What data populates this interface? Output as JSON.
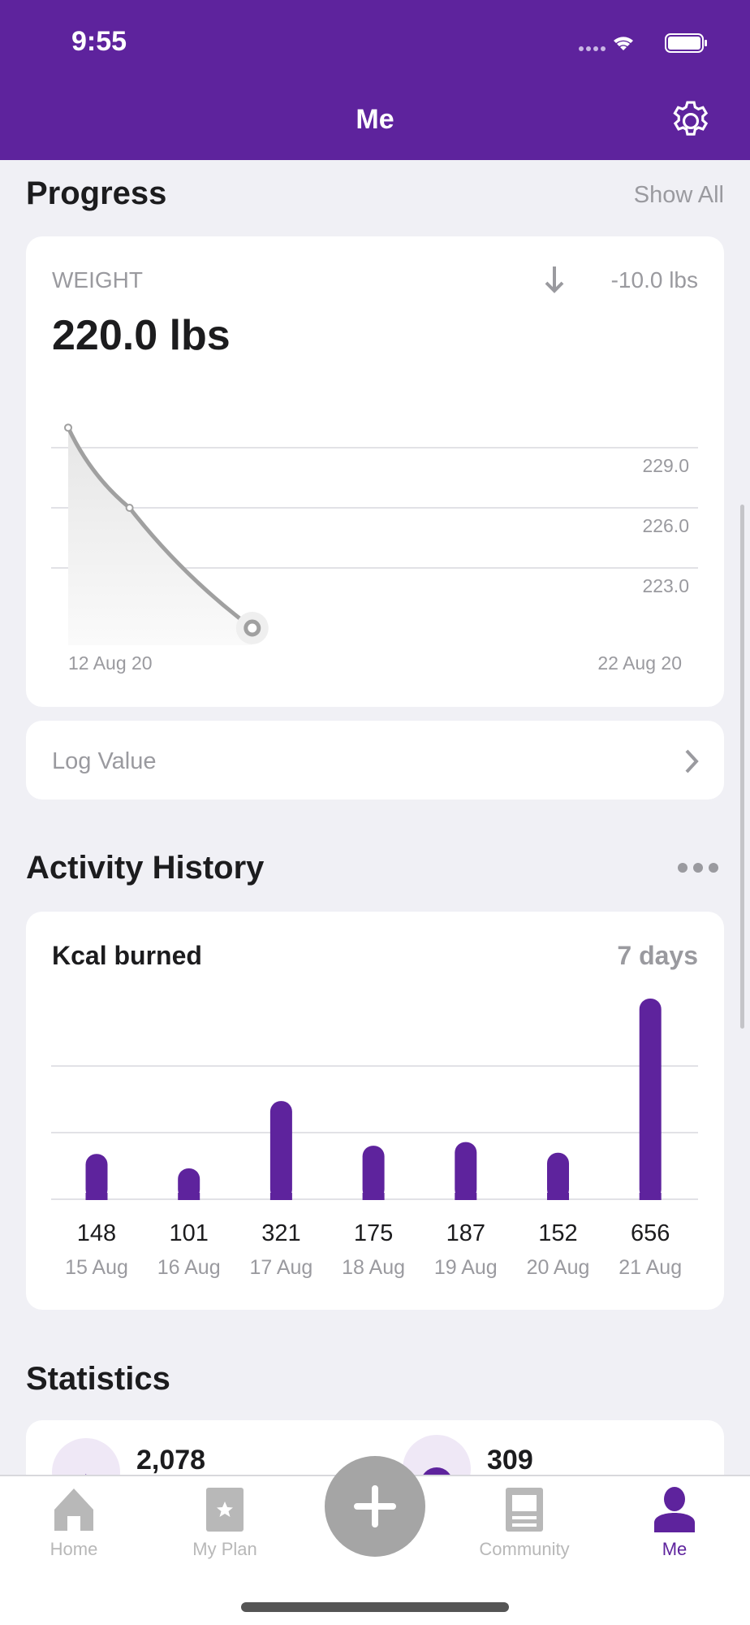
{
  "status_bar": {
    "time": "9:55"
  },
  "header": {
    "title": "Me"
  },
  "progress": {
    "title": "Progress",
    "show_all": "Show All",
    "weight": {
      "label": "WEIGHT",
      "change": "-10.0 lbs",
      "value": "220.0 lbs"
    },
    "log_value": "Log Value"
  },
  "activity": {
    "title": "Activity History",
    "card_title": "Kcal burned",
    "range": "7 days"
  },
  "statistics": {
    "title": "Statistics",
    "items": [
      {
        "value": "2,078",
        "icon": "flame-icon"
      },
      {
        "value": "309",
        "icon": "activity-icon"
      }
    ]
  },
  "tabs": [
    {
      "label": "Home"
    },
    {
      "label": "My Plan"
    },
    {
      "label": ""
    },
    {
      "label": "Community"
    },
    {
      "label": "Me"
    }
  ],
  "colors": {
    "accent": "#5e239d",
    "inactive": "#b8b8b8"
  },
  "chart_data": [
    {
      "type": "line",
      "x": [
        "12 Aug 20",
        "13 Aug 20",
        "15 Aug 20"
      ],
      "values": [
        230.0,
        226.0,
        220.0
      ],
      "ytick_labels": [
        "229.0",
        "226.0",
        "223.0"
      ],
      "xtick_labels": [
        "12 Aug 20",
        "22 Aug 20"
      ],
      "grid": true
    },
    {
      "type": "bar",
      "categories": [
        "15 Aug",
        "16 Aug",
        "17 Aug",
        "18 Aug",
        "19 Aug",
        "20 Aug",
        "21 Aug"
      ],
      "values": [
        148,
        101,
        321,
        175,
        187,
        152,
        656
      ],
      "value_labels": [
        "148",
        "101",
        "321",
        "175",
        "187",
        "152",
        "656"
      ],
      "grid": true
    }
  ]
}
